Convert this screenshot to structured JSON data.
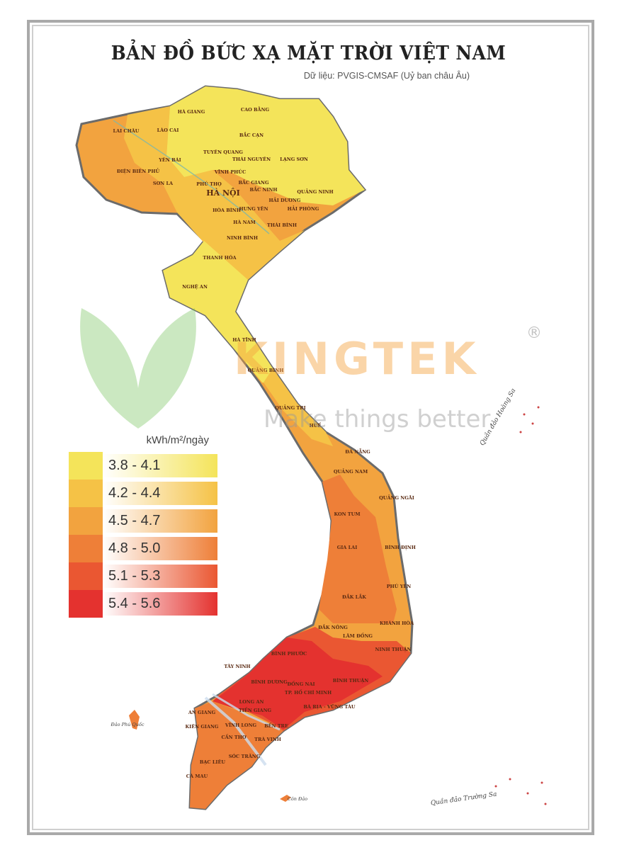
{
  "title": "BẢN ĐỒ BỨC XẠ MẶT TRỜI VIỆT NAM",
  "subtitle": "Dữ liệu: PVGIS-CMSAF (Uỷ ban châu Âu)",
  "legend": {
    "unit": "kWh/m²/ngày",
    "items": [
      {
        "label": "3.8 - 4.1",
        "color": "#f4e45a"
      },
      {
        "label": "4.2 - 4.4",
        "color": "#f5c246"
      },
      {
        "label": "4.5 - 4.7",
        "color": "#f2a33f"
      },
      {
        "label": "4.8 - 5.0",
        "color": "#ee7f38"
      },
      {
        "label": "5.1 - 5.3",
        "color": "#ea5732"
      },
      {
        "label": "5.4 - 5.6",
        "color": "#e4322f"
      }
    ]
  },
  "watermark": {
    "brand": "KINGTEK",
    "slogan": "Make things better",
    "mark": "®"
  },
  "provinces": [
    "HÀ GIANG",
    "CAO BẰNG",
    "LAI CHÂU",
    "LÀO CAI",
    "BẮC CẠN",
    "TUYÊN QUANG",
    "YÊN BÁI",
    "THÁI NGUYÊN",
    "LẠNG SƠN",
    "ĐIỆN BIÊN PHỦ",
    "VĨNH PHÚC",
    "SƠN LA",
    "PHÚ THỌ",
    "BẮC GIANG",
    "BẮC NINH",
    "HÀ NỘI",
    "QUẢNG NINH",
    "HẢI DƯƠNG",
    "HẢI PHÒNG",
    "HÒA BÌNH",
    "HƯNG YÊN",
    "HÀ NAM",
    "THÁI BÌNH",
    "NINH BÌNH",
    "THANH HÓA",
    "NGHỆ AN",
    "HÀ TĨNH",
    "QUẢNG BÌNH",
    "QUẢNG TRỊ",
    "HUẾ",
    "ĐÀ NẴNG",
    "QUẢNG NAM",
    "QUẢNG NGÃI",
    "KON TUM",
    "GIA LAI",
    "BÌNH ĐỊNH",
    "PHÚ YÊN",
    "ĐẮK LẮK",
    "ĐẮK NÔNG",
    "KHÁNH HÒA",
    "LÂM ĐỒNG",
    "NINH THUẬN",
    "BÌNH PHƯỚC",
    "TÂY NINH",
    "BÌNH DƯƠNG",
    "ĐỒNG NAI",
    "BÌNH THUẬN",
    "TP. HỒ CHÍ MINH",
    "LONG AN",
    "TIỀN GIANG",
    "BÀ RỊA - VŨNG TÀU",
    "AN GIANG",
    "KIÊN GIANG",
    "VĨNH LONG",
    "BẾN TRE",
    "CẦN THƠ",
    "TRÀ VINH",
    "SÓC TRĂNG",
    "BẠC LIÊU",
    "CÀ MAU"
  ],
  "islands": [
    "Đảo Phú Quốc",
    "Côn Đảo",
    "Quần đảo Hoàng Sa",
    "Quần đảo Trường Sa"
  ]
}
